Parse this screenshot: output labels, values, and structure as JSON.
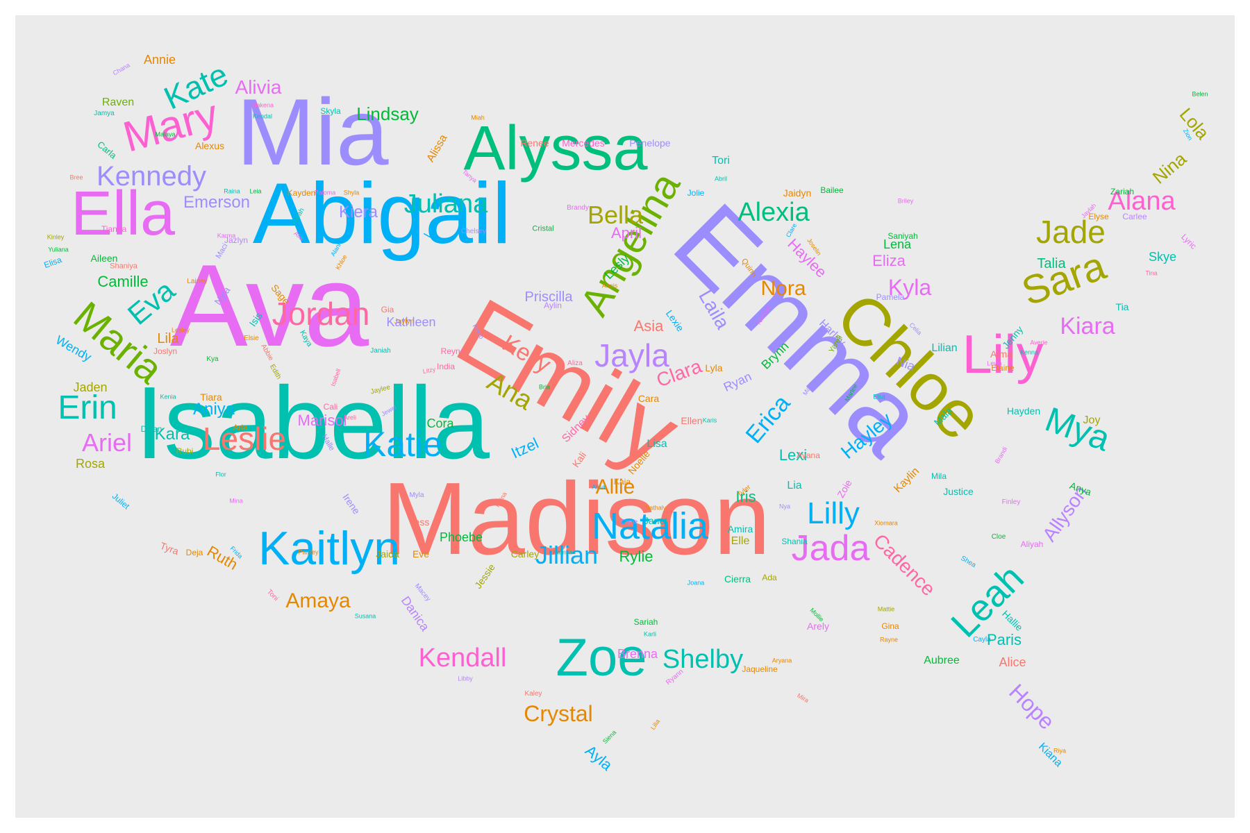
{
  "palette": {
    "c1": "#F8766D",
    "c2": "#E58700",
    "c3": "#C99800",
    "c4": "#A3A500",
    "c5": "#6BB100",
    "c6": "#00BA38",
    "c7": "#00BF7D",
    "c8": "#00C0AF",
    "c9": "#00BCD8",
    "c10": "#00B0F6",
    "c11": "#619CFF",
    "c12": "#B983FF",
    "c13": "#E76BF3",
    "c14": "#FD61D1",
    "c15": "#FF67A4",
    "c16": "#9C8DFF"
  },
  "words": [
    {
      "text": "Madison",
      "color": "c1"
    },
    {
      "text": "Isabella",
      "color": "c8"
    },
    {
      "text": "Ava",
      "color": "c13"
    },
    {
      "text": "Emily",
      "color": "c1"
    },
    {
      "text": "Emma",
      "color": "c16"
    },
    {
      "text": "Abigail",
      "color": "c10"
    },
    {
      "text": "Mia",
      "color": "c16"
    },
    {
      "text": "Chloe",
      "color": "c4"
    },
    {
      "text": "Alyssa",
      "color": "c7"
    },
    {
      "text": "Ella",
      "color": "c13"
    },
    {
      "text": "Kaitlyn",
      "color": "c10"
    },
    {
      "text": "Zoe",
      "color": "c8"
    },
    {
      "text": "Angelina",
      "color": "c5"
    },
    {
      "text": "Lily",
      "color": "c14"
    },
    {
      "text": "Mary",
      "color": "c14"
    },
    {
      "text": "Maria",
      "color": "c5"
    },
    {
      "text": "Natalia",
      "color": "c10"
    },
    {
      "text": "Sara",
      "color": "c4"
    },
    {
      "text": "Leah",
      "color": "c8"
    },
    {
      "text": "Jada",
      "color": "c13"
    },
    {
      "text": "Jordan",
      "color": "c15"
    },
    {
      "text": "Katie",
      "color": "c10"
    },
    {
      "text": "Leslie",
      "color": "c1"
    },
    {
      "text": "Jayla",
      "color": "c12"
    },
    {
      "text": "Kate",
      "color": "c8"
    },
    {
      "text": "Kennedy",
      "color": "c16"
    },
    {
      "text": "Juliana",
      "color": "c8"
    },
    {
      "text": "Jade",
      "color": "c4"
    },
    {
      "text": "Kendall",
      "color": "c14"
    },
    {
      "text": "Shelby",
      "color": "c8"
    },
    {
      "text": "Erin",
      "color": "c8"
    },
    {
      "text": "Mya",
      "color": "c8"
    },
    {
      "text": "Lilly",
      "color": "c10"
    },
    {
      "text": "Alexia",
      "color": "c7"
    },
    {
      "text": "Alana",
      "color": "c14"
    },
    {
      "text": "Eva",
      "color": "c8"
    },
    {
      "text": "Jillian",
      "color": "c10"
    },
    {
      "text": "Crystal",
      "color": "c2"
    },
    {
      "text": "Kelly",
      "color": "c1"
    },
    {
      "text": "Ana",
      "color": "c4"
    },
    {
      "text": "Bella",
      "color": "c4"
    },
    {
      "text": "Ariel",
      "color": "c13"
    },
    {
      "text": "Erica",
      "color": "c10"
    },
    {
      "text": "Laila",
      "color": "c16"
    },
    {
      "text": "Kiara",
      "color": "c13"
    },
    {
      "text": "Hayley",
      "color": "c10"
    },
    {
      "text": "Cadence",
      "color": "c15"
    },
    {
      "text": "Allyson",
      "color": "c12"
    },
    {
      "text": "Hope",
      "color": "c12"
    },
    {
      "text": "Clara",
      "color": "c15"
    },
    {
      "text": "Nora",
      "color": "c2"
    },
    {
      "text": "Kyla",
      "color": "c13"
    },
    {
      "text": "Amaya",
      "color": "c2"
    },
    {
      "text": "Allie",
      "color": "c2"
    },
    {
      "text": "Lindsay",
      "color": "c6"
    },
    {
      "text": "Alivia",
      "color": "c13"
    },
    {
      "text": "Emerson",
      "color": "c16"
    },
    {
      "text": "Kiera",
      "color": "c16"
    },
    {
      "text": "Priscilla",
      "color": "c16"
    },
    {
      "text": "Kathleen",
      "color": "c16"
    },
    {
      "text": "Camille",
      "color": "c6"
    },
    {
      "text": "Aniya",
      "color": "c10"
    },
    {
      "text": "Kara",
      "color": "c8"
    },
    {
      "text": "Marisol",
      "color": "c13"
    },
    {
      "text": "Itzel",
      "color": "c10"
    },
    {
      "text": "Phoebe",
      "color": "c6"
    },
    {
      "text": "Rylie",
      "color": "c6"
    },
    {
      "text": "Ruth",
      "color": "c2"
    },
    {
      "text": "Iris",
      "color": "c7"
    },
    {
      "text": "Lexi",
      "color": "c8"
    },
    {
      "text": "Lena",
      "color": "c6"
    },
    {
      "text": "Eliza",
      "color": "c13"
    },
    {
      "text": "Talia",
      "color": "c7"
    },
    {
      "text": "Nina",
      "color": "c4"
    },
    {
      "text": "Lola",
      "color": "c4"
    },
    {
      "text": "Skye",
      "color": "c8"
    },
    {
      "text": "Paris",
      "color": "c8"
    },
    {
      "text": "Alice",
      "color": "c1"
    },
    {
      "text": "Brenna",
      "color": "c13"
    },
    {
      "text": "Lesly",
      "color": "c6"
    },
    {
      "text": "April",
      "color": "c13"
    },
    {
      "text": "Haylee",
      "color": "c13"
    },
    {
      "text": "Asia",
      "color": "c1"
    },
    {
      "text": "Raven",
      "color": "c5"
    },
    {
      "text": "Annie",
      "color": "c2"
    },
    {
      "text": "Wendy",
      "color": "c10"
    },
    {
      "text": "Jaden",
      "color": "c4"
    },
    {
      "text": "Lila",
      "color": "c2"
    },
    {
      "text": "Rosa",
      "color": "c4"
    },
    {
      "text": "Ayla",
      "color": "c10"
    },
    {
      "text": "Danica",
      "color": "c12"
    },
    {
      "text": "Cora",
      "color": "c6"
    },
    {
      "text": "Lisa",
      "color": "c8"
    },
    {
      "text": "Sidney",
      "color": "c15"
    },
    {
      "text": "Tori",
      "color": "c8"
    },
    {
      "text": "Brynn",
      "color": "c6"
    },
    {
      "text": "Ryan",
      "color": "c16"
    },
    {
      "text": "Lilian",
      "color": "c8"
    },
    {
      "text": "Nia",
      "color": "c16"
    },
    {
      "text": "Harley",
      "color": "c16"
    },
    {
      "text": "Kaylin",
      "color": "c2"
    },
    {
      "text": "Zoie",
      "color": "c13"
    },
    {
      "text": "Justice",
      "color": "c8"
    },
    {
      "text": "Hayden",
      "color": "c8"
    },
    {
      "text": "Aubree",
      "color": "c6"
    },
    {
      "text": "Hallie",
      "color": "c8"
    },
    {
      "text": "Jenny",
      "color": "c8"
    },
    {
      "text": "Kiana",
      "color": "c10"
    },
    {
      "text": "Anya",
      "color": "c6"
    },
    {
      "text": "Lia",
      "color": "c8"
    },
    {
      "text": "Elle",
      "color": "c4"
    },
    {
      "text": "Amira",
      "color": "c8"
    },
    {
      "text": "Janet",
      "color": "c8"
    },
    {
      "text": "Eve",
      "color": "c2"
    },
    {
      "text": "Jaida",
      "color": "c4"
    },
    {
      "text": "Carley",
      "color": "c4"
    },
    {
      "text": "Cierra",
      "color": "c7"
    },
    {
      "text": "Arely",
      "color": "c13"
    },
    {
      "text": "Maia",
      "color": "c8"
    },
    {
      "text": "Tess",
      "color": "c1"
    },
    {
      "text": "Jessie",
      "color": "c4"
    },
    {
      "text": "Mercedes",
      "color": "c14"
    },
    {
      "text": "Penelope",
      "color": "c16"
    },
    {
      "text": "Renee",
      "color": "c1"
    },
    {
      "text": "Alissa",
      "color": "c2"
    },
    {
      "text": "Skyla",
      "color": "c8"
    },
    {
      "text": "Alexus",
      "color": "c2"
    },
    {
      "text": "Carla",
      "color": "c7"
    },
    {
      "text": "Aileen",
      "color": "c6"
    },
    {
      "text": "Tianna",
      "color": "c14"
    },
    {
      "text": "Nyla",
      "color": "c16"
    },
    {
      "text": "Isis",
      "color": "c8"
    },
    {
      "text": "Sage",
      "color": "c2"
    },
    {
      "text": "Jazlyn",
      "color": "c12"
    },
    {
      "text": "Joslyn",
      "color": "c1"
    },
    {
      "text": "Tiara",
      "color": "c2"
    },
    {
      "text": "Dylan",
      "color": "c8"
    },
    {
      "text": "Rubi",
      "color": "c4"
    },
    {
      "text": "Tyra",
      "color": "c1"
    },
    {
      "text": "Deja",
      "color": "c2"
    },
    {
      "text": "Juliet",
      "color": "c10"
    },
    {
      "text": "Irene",
      "color": "c16"
    },
    {
      "text": "Noelle",
      "color": "c2"
    },
    {
      "text": "Cara",
      "color": "c2"
    },
    {
      "text": "Ellen",
      "color": "c1"
    },
    {
      "text": "Kali",
      "color": "c1"
    },
    {
      "text": "Shania",
      "color": "c8"
    },
    {
      "text": "Lyla",
      "color": "c2"
    },
    {
      "text": "Kayden",
      "color": "c2"
    },
    {
      "text": "Jolie",
      "color": "c10"
    },
    {
      "text": "Jaidyn",
      "color": "c2"
    },
    {
      "text": "Bailee",
      "color": "c6"
    },
    {
      "text": "Elyse",
      "color": "c2"
    },
    {
      "text": "Carlee",
      "color": "c12"
    },
    {
      "text": "Zariah",
      "color": "c6"
    },
    {
      "text": "Tia",
      "color": "c8"
    },
    {
      "text": "Alma",
      "color": "c1"
    },
    {
      "text": "Elaine",
      "color": "c2"
    },
    {
      "text": "Joy",
      "color": "c4"
    },
    {
      "text": "Pamela",
      "color": "c16"
    },
    {
      "text": "Saniyah",
      "color": "c6"
    },
    {
      "text": "Gina",
      "color": "c2"
    },
    {
      "text": "Ada",
      "color": "c4"
    },
    {
      "text": "Aylin",
      "color": "c12"
    },
    {
      "text": "Lexie",
      "color": "c10"
    },
    {
      "text": "Reyna",
      "color": "c15"
    },
    {
      "text": "India",
      "color": "c15"
    },
    {
      "text": "Kaia",
      "color": "c2"
    },
    {
      "text": "Mila",
      "color": "c8"
    },
    {
      "text": "Ayana",
      "color": "c1"
    },
    {
      "text": "Sariah",
      "color": "c6"
    },
    {
      "text": "Cristal",
      "color": "c6"
    },
    {
      "text": "Brandy",
      "color": "c13"
    },
    {
      "text": "Chelsey",
      "color": "c16"
    },
    {
      "text": "Gia",
      "color": "c1"
    },
    {
      "text": "Jaylyn",
      "color": "c2"
    },
    {
      "text": "Aliza",
      "color": "c15"
    },
    {
      "text": "Kenna",
      "color": "c8"
    },
    {
      "text": "Averie",
      "color": "c14"
    },
    {
      "text": "Leyla",
      "color": "c13"
    },
    {
      "text": "Cloe",
      "color": "c6"
    },
    {
      "text": "Aliyah",
      "color": "c13"
    },
    {
      "text": "Finley",
      "color": "c13"
    },
    {
      "text": "Shea",
      "color": "c10"
    },
    {
      "text": "Cayla",
      "color": "c10"
    },
    {
      "text": "Riya",
      "color": "c2"
    },
    {
      "text": "Mattie",
      "color": "c4"
    },
    {
      "text": "Rayne",
      "color": "c2"
    },
    {
      "text": "Jaqueline",
      "color": "c2"
    },
    {
      "text": "Aryana",
      "color": "c2"
    },
    {
      "text": "Mollie",
      "color": "c6"
    },
    {
      "text": "Karli",
      "color": "c8"
    },
    {
      "text": "Joana",
      "color": "c10"
    },
    {
      "text": "Tyler",
      "color": "c2"
    },
    {
      "text": "Nya",
      "color": "c16"
    },
    {
      "text": "Carrie",
      "color": "c16"
    },
    {
      "text": "Nathaly",
      "color": "c2"
    },
    {
      "text": "Alisa",
      "color": "c10"
    },
    {
      "text": "Kamila",
      "color": "c8"
    },
    {
      "text": "Myla",
      "color": "c16"
    },
    {
      "text": "Paisley",
      "color": "c2"
    },
    {
      "text": "Frida",
      "color": "c10"
    },
    {
      "text": "Flor",
      "color": "c8"
    },
    {
      "text": "Mina",
      "color": "c13"
    },
    {
      "text": "Toni",
      "color": "c15"
    },
    {
      "text": "Macey",
      "color": "c16"
    },
    {
      "text": "Susana",
      "color": "c8"
    },
    {
      "text": "Libby",
      "color": "c12"
    },
    {
      "text": "Kaley",
      "color": "c1"
    },
    {
      "text": "Lilia",
      "color": "c2"
    },
    {
      "text": "Siena",
      "color": "c6"
    },
    {
      "text": "Mira",
      "color": "c1"
    },
    {
      "text": "Ryann",
      "color": "c13"
    },
    {
      "text": "Chana",
      "color": "c12"
    },
    {
      "text": "Jamya",
      "color": "c8"
    },
    {
      "text": "Malaya",
      "color": "c6"
    },
    {
      "text": "Makena",
      "color": "c14"
    },
    {
      "text": "Kendal",
      "color": "c8"
    },
    {
      "text": "Miah",
      "color": "c2"
    },
    {
      "text": "Bree",
      "color": "c1"
    },
    {
      "text": "Kinley",
      "color": "c4"
    },
    {
      "text": "Yuliana",
      "color": "c6"
    },
    {
      "text": "Elisa",
      "color": "c10"
    },
    {
      "text": "Shaniya",
      "color": "c1"
    },
    {
      "text": "Lainey",
      "color": "c2"
    },
    {
      "text": "Lesley",
      "color": "c2"
    },
    {
      "text": "Kya",
      "color": "c6"
    },
    {
      "text": "Kenia",
      "color": "c8"
    },
    {
      "text": "Raina",
      "color": "c8"
    },
    {
      "text": "Leia",
      "color": "c6"
    },
    {
      "text": "Karma",
      "color": "c13"
    },
    {
      "text": "Maci",
      "color": "c16"
    },
    {
      "text": "Aleah",
      "color": "c8"
    },
    {
      "text": "Alia",
      "color": "c13"
    },
    {
      "text": "Paloma",
      "color": "c13"
    },
    {
      "text": "Shyla",
      "color": "c2"
    },
    {
      "text": "Alani",
      "color": "c10"
    },
    {
      "text": "Khloe",
      "color": "c2"
    },
    {
      "text": "Elsie",
      "color": "c2"
    },
    {
      "text": "Kaya",
      "color": "c8"
    },
    {
      "text": "Janiah",
      "color": "c8"
    },
    {
      "text": "Abbie",
      "color": "c1"
    },
    {
      "text": "Edith",
      "color": "c4"
    },
    {
      "text": "Isabell",
      "color": "c15"
    },
    {
      "text": "Cali",
      "color": "c15"
    },
    {
      "text": "Areli",
      "color": "c15"
    },
    {
      "text": "Jaylee",
      "color": "c4"
    },
    {
      "text": "Litzy",
      "color": "c15"
    },
    {
      "text": "Jewel",
      "color": "c16"
    },
    {
      "text": "Aria",
      "color": "c2"
    },
    {
      "text": "Halle",
      "color": "c16"
    },
    {
      "text": "Rocio",
      "color": "c16"
    },
    {
      "text": "Bria",
      "color": "c6"
    },
    {
      "text": "Karis",
      "color": "c8"
    },
    {
      "text": "Yareli",
      "color": "c5"
    },
    {
      "text": "Marlee",
      "color": "c6"
    },
    {
      "text": "Mara",
      "color": "c16"
    },
    {
      "text": "Elsa",
      "color": "c8"
    },
    {
      "text": "Celia",
      "color": "c16"
    },
    {
      "text": "Clare",
      "color": "c10"
    },
    {
      "text": "Joselin",
      "color": "c2"
    },
    {
      "text": "Quinn",
      "color": "c2"
    },
    {
      "text": "Anais",
      "color": "c2"
    },
    {
      "text": "Nichole",
      "color": "c13"
    },
    {
      "text": "Abril",
      "color": "c8"
    },
    {
      "text": "Tanya",
      "color": "c13"
    },
    {
      "text": "Briley",
      "color": "c13"
    },
    {
      "text": "Jaylah",
      "color": "c13"
    },
    {
      "text": "Lyric",
      "color": "c13"
    },
    {
      "text": "Tina",
      "color": "c15"
    },
    {
      "text": "Belen",
      "color": "c6"
    },
    {
      "text": "Zion",
      "color": "c10"
    },
    {
      "text": "Brandi",
      "color": "c13"
    },
    {
      "text": "Xiomara",
      "color": "c2"
    },
    {
      "text": "Lea",
      "color": "c10"
    },
    {
      "text": "Raina",
      "color": "c1"
    }
  ]
}
